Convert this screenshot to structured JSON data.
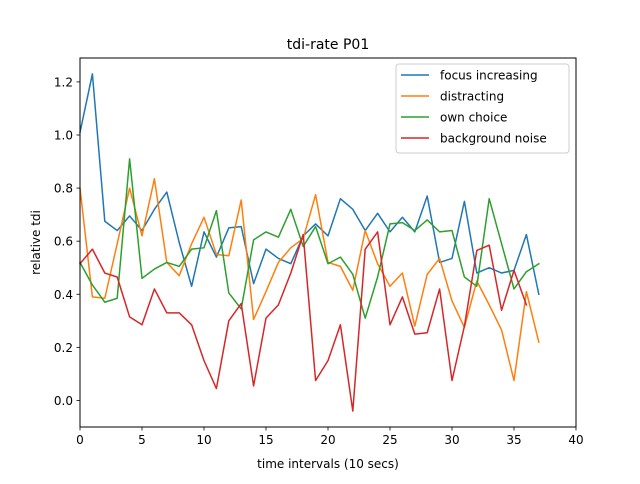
{
  "chart_data": {
    "type": "line",
    "title": "tdi-rate P01",
    "xlabel": "time intervals (10 secs)",
    "ylabel": "relative tdi",
    "xlim": [
      0,
      40
    ],
    "ylim": [
      -0.1,
      1.29
    ],
    "xticks": [
      0,
      5,
      10,
      15,
      20,
      25,
      30,
      35,
      40
    ],
    "yticks": [
      0.0,
      0.2,
      0.4,
      0.6,
      0.8,
      1.0,
      1.2
    ],
    "xtick_labels": [
      "0",
      "5",
      "10",
      "15",
      "20",
      "25",
      "30",
      "35",
      "40"
    ],
    "ytick_labels": [
      "0.0",
      "0.2",
      "0.4",
      "0.6",
      "0.8",
      "1.0",
      "1.2"
    ],
    "grid": false,
    "legend_position": "upper-right",
    "x": [
      0,
      1,
      2,
      3,
      4,
      5,
      6,
      7,
      8,
      9,
      10,
      11,
      12,
      13,
      14,
      15,
      16,
      17,
      18,
      19,
      20,
      21,
      22,
      23,
      24,
      25,
      26,
      27,
      28,
      29,
      30,
      31,
      32,
      33,
      34,
      35,
      36,
      37
    ],
    "series": [
      {
        "name": "focus increasing",
        "color": "#1f77b4",
        "values": [
          1.01,
          1.23,
          0.675,
          0.64,
          0.695,
          0.64,
          0.72,
          0.785,
          0.595,
          0.43,
          0.635,
          0.54,
          0.65,
          0.655,
          0.44,
          0.57,
          0.535,
          0.515,
          0.62,
          0.665,
          0.62,
          0.76,
          0.72,
          0.64,
          0.705,
          0.635,
          0.69,
          0.635,
          0.77,
          0.52,
          0.535,
          0.75,
          0.48,
          0.5,
          0.48,
          0.49,
          0.625,
          0.4
        ]
      },
      {
        "name": "distracting",
        "color": "#ff7f0e",
        "values": [
          0.8,
          0.39,
          0.385,
          0.59,
          0.8,
          0.62,
          0.835,
          0.52,
          0.47,
          0.59,
          0.69,
          0.55,
          0.545,
          0.755,
          0.305,
          0.41,
          0.52,
          0.575,
          0.61,
          0.775,
          0.52,
          0.505,
          0.415,
          0.64,
          0.515,
          0.43,
          0.48,
          0.28,
          0.475,
          0.535,
          0.375,
          0.275,
          0.45,
          0.36,
          0.265,
          0.075,
          0.41,
          0.22
        ]
      },
      {
        "name": "own choice",
        "color": "#2ca02c",
        "values": [
          0.52,
          0.435,
          0.37,
          0.385,
          0.91,
          0.46,
          0.495,
          0.52,
          0.505,
          0.57,
          0.575,
          0.715,
          0.405,
          0.345,
          0.605,
          0.635,
          0.615,
          0.72,
          0.58,
          0.655,
          0.515,
          0.54,
          0.475,
          0.31,
          0.465,
          0.665,
          0.67,
          0.64,
          0.68,
          0.635,
          0.64,
          0.465,
          0.43,
          0.76,
          0.59,
          0.42,
          0.485,
          0.515
        ]
      },
      {
        "name": "background noise",
        "color": "#d62728",
        "values": [
          0.515,
          0.57,
          0.48,
          0.465,
          0.315,
          0.285,
          0.42,
          0.33,
          0.33,
          0.285,
          0.15,
          0.045,
          0.3,
          0.365,
          0.055,
          0.31,
          0.36,
          0.48,
          0.625,
          0.075,
          0.15,
          0.285,
          -0.04,
          0.57,
          0.635,
          0.285,
          0.39,
          0.25,
          0.255,
          0.42,
          0.075,
          0.28,
          0.565,
          0.585,
          0.34,
          0.49,
          0.36,
          null
        ]
      }
    ]
  }
}
